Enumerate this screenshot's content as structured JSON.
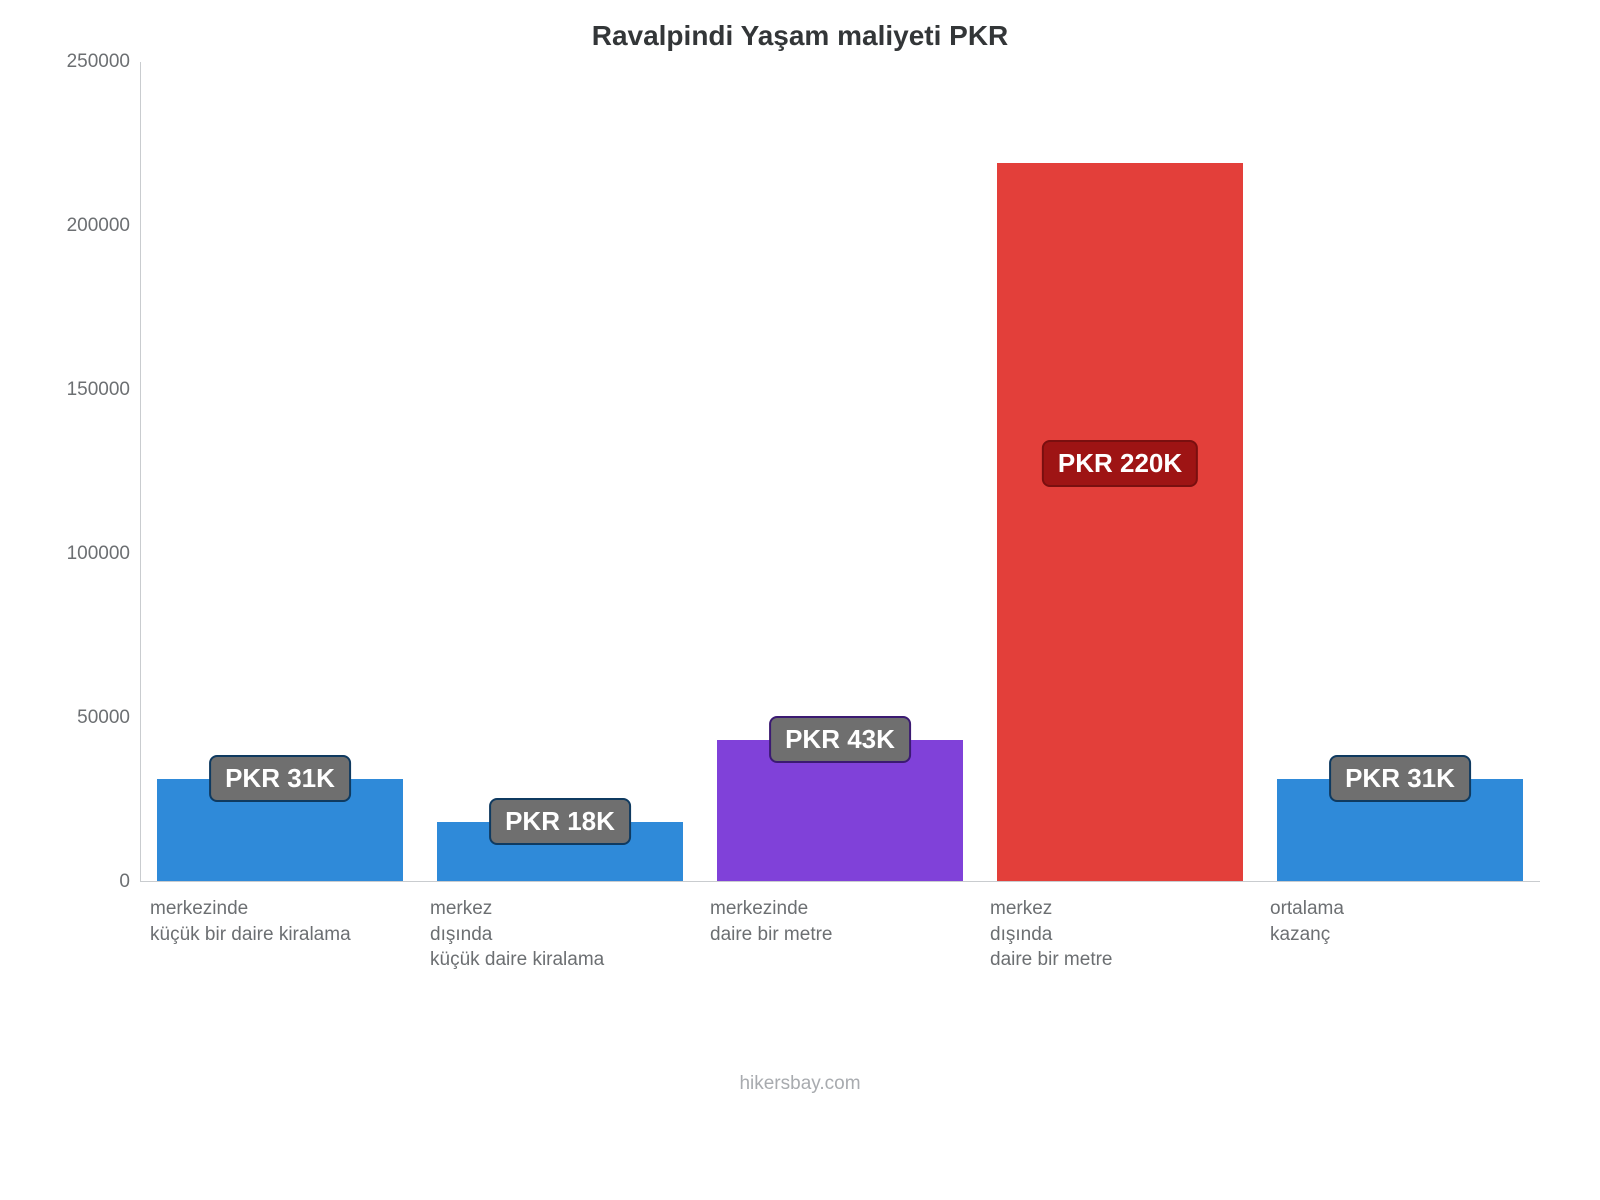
{
  "chart": {
    "type": "bar",
    "title": "Ravalpindi Yaşam maliyeti PKR",
    "title_fontsize": 28,
    "title_color": "#333638",
    "background_color": "#ffffff",
    "axis_line_color": "#c9cccf",
    "tick_label_color": "#6c6f72",
    "tick_fontsize": 19,
    "x_label_fontsize": 19,
    "badge_fontsize": 26,
    "credit_fontsize": 19,
    "y": {
      "min": 0,
      "max": 250000,
      "ticks": [
        0,
        50000,
        100000,
        150000,
        200000,
        250000
      ]
    },
    "bars": [
      {
        "label": "merkezinde\nküçük bir daire kiralama",
        "value": 31000,
        "display": "PKR 31K",
        "bar_color": "#2f8ad9",
        "badge_bg": "#6f6f6f",
        "badge_border": "#0f3a60"
      },
      {
        "label": "merkez\ndışında\nküçük daire kiralama",
        "value": 18000,
        "display": "PKR 18K",
        "bar_color": "#2f8ad9",
        "badge_bg": "#6f6f6f",
        "badge_border": "#0f3a60"
      },
      {
        "label": "merkezinde\ndaire bir metre",
        "value": 43000,
        "display": "PKR 43K",
        "bar_color": "#8041d9",
        "badge_bg": "#6f6f6f",
        "badge_border": "#3b1a72"
      },
      {
        "label": "merkez\ndışında\ndaire bir metre",
        "value": 219000,
        "display": "PKR 220K",
        "bar_color": "#e33f3a",
        "badge_bg": "#9e1414",
        "badge_border": "#7a0f0f"
      },
      {
        "label": "ortalama\nkazanç",
        "value": 31000,
        "display": "PKR 31K",
        "bar_color": "#2f8ad9",
        "badge_bg": "#6f6f6f",
        "badge_border": "#0f3a60"
      }
    ],
    "credit": "hikersbay.com"
  }
}
